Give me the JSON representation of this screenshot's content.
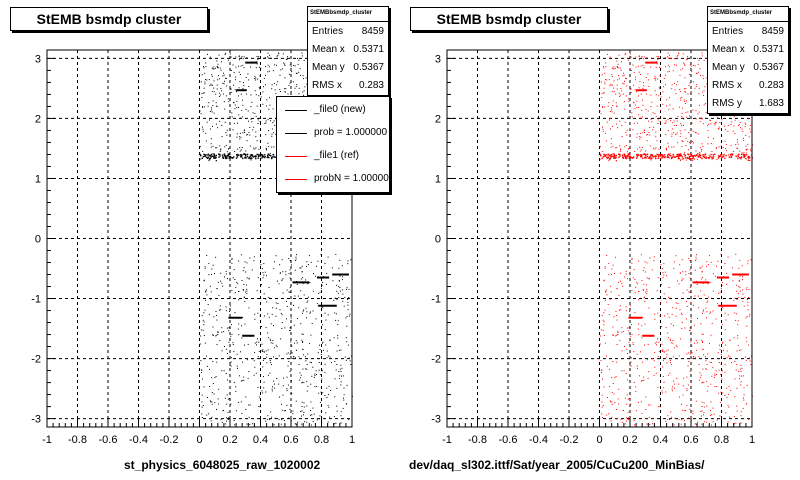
{
  "chart_data": [
    {
      "type": "scatter",
      "title": "StEMB bsmdp cluster",
      "xlabel": "st_physics_6048025_raw_1020002",
      "ylabel": "",
      "xlim": [
        -1,
        1
      ],
      "ylim": [
        -3.14,
        3.14
      ],
      "xticks": [
        "-1",
        "-0.8",
        "-0.6",
        "-0.4",
        "-0.2",
        "0",
        "0.2",
        "0.4",
        "0.6",
        "0.8",
        "1"
      ],
      "yticks": [
        "-3",
        "-2",
        "-1",
        "0",
        "1",
        "2",
        "3"
      ],
      "grid": true,
      "marker_color": "#000000",
      "stats": {
        "header": "StEMBbsmdp_cluster",
        "rows": [
          {
            "label": "Entries",
            "value": "8459"
          },
          {
            "label": "Mean x",
            "value": "0.5371"
          },
          {
            "label": "Mean y",
            "value": "0.5367"
          },
          {
            "label": "RMS x",
            "value": "0.283"
          }
        ]
      },
      "legend": {
        "placement": "right",
        "items": [
          {
            "label": "_file0 (new)",
            "color": "#000000"
          },
          {
            "label": "prob = 1.000000",
            "color": "#000000"
          },
          {
            "label": "_file1 (ref)",
            "color": "#ff0000"
          },
          {
            "label": "probN = 1.000000",
            "color": "#ff0000"
          }
        ]
      },
      "points_region": {
        "x": [
          0,
          1
        ],
        "y_bands": [
          [
            -3.1,
            -0.25
          ],
          [
            1.3,
            3.1
          ]
        ]
      },
      "dense_bands": [
        {
          "x": [
            0,
            1
          ],
          "y": 1.38
        }
      ],
      "segments": [
        {
          "x": [
            0.3,
            0.38
          ],
          "y": 2.93
        },
        {
          "x": [
            0.24,
            0.31
          ],
          "y": 2.47
        },
        {
          "x": [
            0.19,
            0.28
          ],
          "y": -1.32
        },
        {
          "x": [
            0.28,
            0.36
          ],
          "y": -1.62
        },
        {
          "x": [
            0.61,
            0.72
          ],
          "y": -0.73
        },
        {
          "x": [
            0.77,
            0.85
          ],
          "y": -0.65
        },
        {
          "x": [
            0.87,
            0.98
          ],
          "y": -0.6
        },
        {
          "x": [
            0.78,
            0.9
          ],
          "y": -1.12
        }
      ]
    },
    {
      "type": "scatter",
      "title": "StEMB bsmdp cluster",
      "xlabel": "dev/daq_sl302.ittf/Sat/year_2005/CuCu200_MinBias/",
      "ylabel": "",
      "xlim": [
        -1,
        1
      ],
      "ylim": [
        -3.14,
        3.14
      ],
      "xticks": [
        "-1",
        "-0.8",
        "-0.6",
        "-0.4",
        "-0.2",
        "0",
        "0.2",
        "0.4",
        "0.6",
        "0.8",
        "1"
      ],
      "yticks": [
        "-3",
        "-2",
        "-1",
        "0",
        "1",
        "2",
        "3"
      ],
      "grid": true,
      "marker_color": "#ff0000",
      "stats": {
        "header": "StEMBbsmdp_cluster",
        "rows": [
          {
            "label": "Entries",
            "value": "8459"
          },
          {
            "label": "Mean x",
            "value": "0.5371"
          },
          {
            "label": "Mean y",
            "value": "0.5367"
          },
          {
            "label": "RMS x",
            "value": "0.283"
          },
          {
            "label": "RMS y",
            "value": "1.683"
          }
        ]
      },
      "points_region": {
        "x": [
          0,
          1
        ],
        "y_bands": [
          [
            -3.1,
            -0.25
          ],
          [
            1.3,
            3.1
          ]
        ]
      },
      "dense_bands": [
        {
          "x": [
            0,
            1
          ],
          "y": 1.38
        }
      ],
      "segments": [
        {
          "x": [
            0.3,
            0.38
          ],
          "y": 2.93
        },
        {
          "x": [
            0.24,
            0.31
          ],
          "y": 2.47
        },
        {
          "x": [
            0.19,
            0.28
          ],
          "y": -1.32
        },
        {
          "x": [
            0.28,
            0.36
          ],
          "y": -1.62
        },
        {
          "x": [
            0.61,
            0.72
          ],
          "y": -0.73
        },
        {
          "x": [
            0.77,
            0.85
          ],
          "y": -0.65
        },
        {
          "x": [
            0.87,
            0.98
          ],
          "y": -0.6
        },
        {
          "x": [
            0.78,
            0.9
          ],
          "y": -1.12
        }
      ]
    }
  ]
}
